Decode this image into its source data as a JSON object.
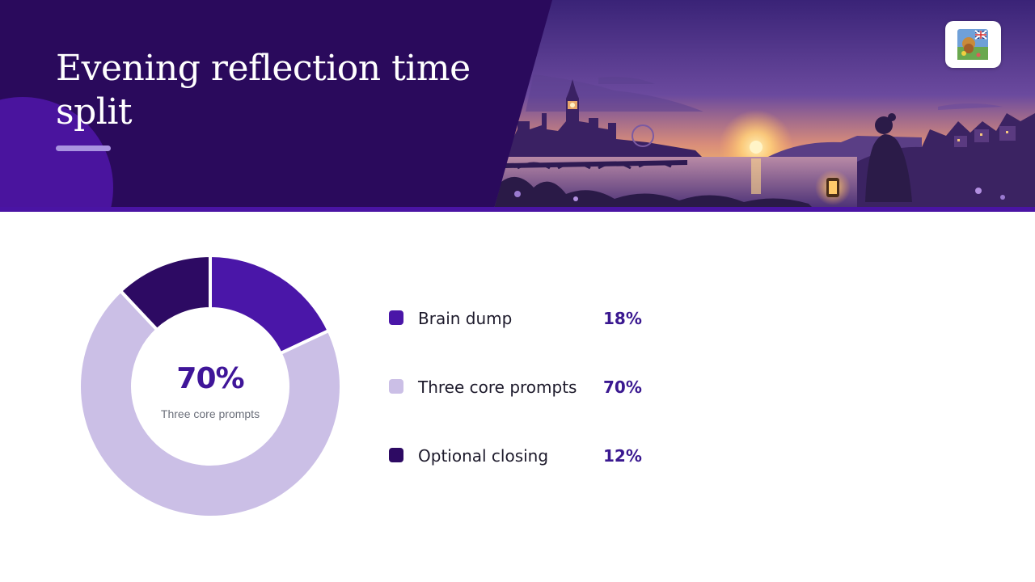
{
  "header": {
    "title": "Evening reflection time split"
  },
  "colors": {
    "accent": "#4a14a4",
    "header_bg": "#2a0a5c"
  },
  "badge": {
    "icon": "uk-flag-picture-icon"
  },
  "center": {
    "value": "70%",
    "label": "Three core prompts"
  },
  "chart_data": {
    "type": "pie",
    "style": "donut",
    "categories": [
      "Brain dump",
      "Three core prompts",
      "Optional closing"
    ],
    "values": [
      18,
      70,
      12
    ],
    "value_labels": [
      "18%",
      "70%",
      "12%"
    ],
    "colors": [
      "#4a16a8",
      "#cbbfe6",
      "#2d0a63"
    ],
    "legend": "right"
  }
}
